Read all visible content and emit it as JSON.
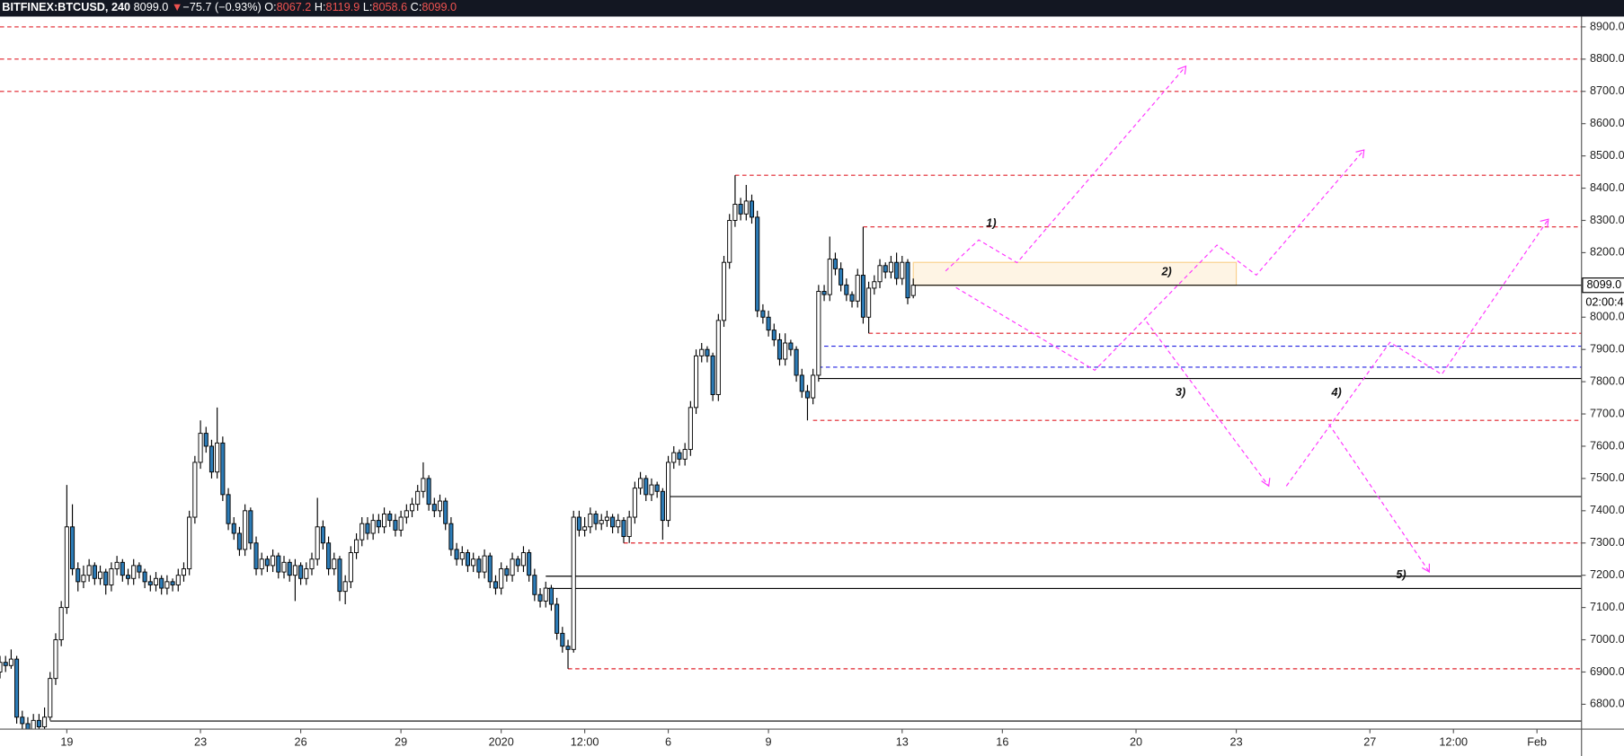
{
  "chart_data": {
    "type": "candlestick",
    "header": {
      "symbol": "BITFINEX:BTCUSD, 240",
      "last": "8099.0",
      "arrow": "▼",
      "change": "−75.7 (−0.93%)",
      "o_label": "O:",
      "o": "8067.2",
      "h_label": "H:",
      "h": "8119.9",
      "l_label": "L:",
      "l": "8058.6",
      "c_label": "C:",
      "c": "8099.0"
    },
    "price_label": "8099.0",
    "countdown": "02:00:4",
    "up_color": "#ffffff",
    "down_color": "#2c7bb6",
    "outline_color": "#000000",
    "xlim": [
      0,
      284
    ],
    "ylim": [
      6723,
      8932
    ],
    "xticks": [
      {
        "value": 12,
        "label": "19"
      },
      {
        "value": 36,
        "label": "23"
      },
      {
        "value": 54,
        "label": "26"
      },
      {
        "value": 72,
        "label": "29"
      },
      {
        "value": 90,
        "label": "2020"
      },
      {
        "value": 105,
        "label": "12:00"
      },
      {
        "value": 120,
        "label": "6"
      },
      {
        "value": 138,
        "label": "9"
      },
      {
        "value": 162,
        "label": "13"
      },
      {
        "value": 180,
        "label": "16"
      },
      {
        "value": 204,
        "label": "20"
      },
      {
        "value": 222,
        "label": "23"
      },
      {
        "value": 246,
        "label": "27"
      },
      {
        "value": 261,
        "label": "12:00"
      },
      {
        "value": 276,
        "label": "Feb"
      }
    ],
    "yticks": [
      {
        "value": 8900,
        "label": "8900.0"
      },
      {
        "value": 8800,
        "label": "8800.0"
      },
      {
        "value": 8700,
        "label": "8700.0"
      },
      {
        "value": 8600,
        "label": "8600.0"
      },
      {
        "value": 8500,
        "label": "8500.0"
      },
      {
        "value": 8400,
        "label": "8400.0"
      },
      {
        "value": 8300,
        "label": "8300.0"
      },
      {
        "value": 8200,
        "label": "8200.0"
      },
      {
        "value": 8000,
        "label": "8000.0"
      },
      {
        "value": 7900,
        "label": "7900.0"
      },
      {
        "value": 7800,
        "label": "7800.0"
      },
      {
        "value": 7700,
        "label": "7700.0"
      },
      {
        "value": 7600,
        "label": "7600.0"
      },
      {
        "value": 7500,
        "label": "7500.0"
      },
      {
        "value": 7400,
        "label": "7400.0"
      },
      {
        "value": 7300,
        "label": "7300.0"
      },
      {
        "value": 7200,
        "label": "7200.0"
      },
      {
        "value": 7100,
        "label": "7100.0"
      },
      {
        "value": 7000,
        "label": "7000.0"
      },
      {
        "value": 6900,
        "label": "6900.0"
      },
      {
        "value": 6800,
        "label": "6800.0"
      }
    ],
    "levels": [
      {
        "price": 8900,
        "start": 0,
        "color": "#e0202a",
        "dashed": true
      },
      {
        "price": 8800,
        "start": 0,
        "color": "#e0202a",
        "dashed": true
      },
      {
        "price": 8700,
        "start": 0,
        "color": "#e0202a",
        "dashed": true
      },
      {
        "price": 8440,
        "start": 132,
        "color": "#e0202a",
        "dashed": true
      },
      {
        "price": 8280,
        "start": 155,
        "color": "#e0202a",
        "dashed": true
      },
      {
        "price": 7950,
        "start": 156,
        "color": "#e0202a",
        "dashed": true
      },
      {
        "price": 7680,
        "start": 146,
        "color": "#e0202a",
        "dashed": true
      },
      {
        "price": 7300,
        "start": 112,
        "color": "#e0202a",
        "dashed": true
      },
      {
        "price": 6910,
        "start": 102,
        "color": "#e0202a",
        "dashed": true
      },
      {
        "price": 7910,
        "start": 148,
        "color": "#2020e0",
        "dashed": true
      },
      {
        "price": 7845,
        "start": 147,
        "color": "#2020e0",
        "dashed": true
      },
      {
        "price": 8099,
        "start": 164,
        "color": "#000000",
        "dashed": false
      },
      {
        "price": 7810,
        "start": 147,
        "color": "#000000",
        "dashed": false
      },
      {
        "price": 7444,
        "start": 120,
        "color": "#000000",
        "dashed": false
      },
      {
        "price": 7197,
        "start": 98,
        "color": "#000000",
        "dashed": false
      },
      {
        "price": 7159,
        "start": 98,
        "color": "#000000",
        "dashed": false
      },
      {
        "price": 6748,
        "start": 9,
        "color": "#000000",
        "dashed": false
      }
    ],
    "zone": {
      "start": 164,
      "end": 222,
      "top": 8170,
      "bottom": 8099,
      "color": "#f5a623"
    },
    "annotations": [
      {
        "text": "1)",
        "x": 178,
        "price": 8290
      },
      {
        "text": "2)",
        "x": 209.5,
        "price": 8140
      },
      {
        "text": "3)",
        "x": 212,
        "price": 7765
      },
      {
        "text": "4)",
        "x": 240,
        "price": 7765
      },
      {
        "text": "5)",
        "x": 251.6,
        "price": 7200
      }
    ],
    "ohlc": [
      [
        6900,
        6950,
        6880,
        6930
      ],
      [
        6930,
        6950,
        6900,
        6920
      ],
      [
        6920,
        6970,
        6910,
        6940
      ],
      [
        6940,
        6950,
        6740,
        6760
      ],
      [
        6760,
        6780,
        6720,
        6740
      ],
      [
        6740,
        6760,
        6700,
        6720
      ],
      [
        6720,
        6770,
        6700,
        6750
      ],
      [
        6750,
        6770,
        6710,
        6730
      ],
      [
        6730,
        6790,
        6720,
        6760
      ],
      [
        6760,
        6900,
        6750,
        6880
      ],
      [
        6880,
        7020,
        6860,
        7000
      ],
      [
        7000,
        7120,
        6980,
        7100
      ],
      [
        7100,
        7480,
        7080,
        7350
      ],
      [
        7350,
        7420,
        7200,
        7220
      ],
      [
        7220,
        7240,
        7150,
        7180
      ],
      [
        7180,
        7230,
        7160,
        7200
      ],
      [
        7200,
        7250,
        7180,
        7230
      ],
      [
        7230,
        7240,
        7170,
        7190
      ],
      [
        7190,
        7230,
        7170,
        7210
      ],
      [
        7210,
        7220,
        7140,
        7170
      ],
      [
        7170,
        7240,
        7150,
        7220
      ],
      [
        7220,
        7260,
        7200,
        7240
      ],
      [
        7240,
        7250,
        7180,
        7200
      ],
      [
        7200,
        7220,
        7170,
        7190
      ],
      [
        7190,
        7250,
        7170,
        7230
      ],
      [
        7230,
        7240,
        7190,
        7210
      ],
      [
        7210,
        7220,
        7160,
        7180
      ],
      [
        7180,
        7200,
        7150,
        7170
      ],
      [
        7170,
        7210,
        7150,
        7190
      ],
      [
        7190,
        7200,
        7140,
        7160
      ],
      [
        7160,
        7200,
        7140,
        7180
      ],
      [
        7180,
        7190,
        7150,
        7170
      ],
      [
        7170,
        7220,
        7150,
        7200
      ],
      [
        7200,
        7240,
        7180,
        7220
      ],
      [
        7220,
        7400,
        7200,
        7380
      ],
      [
        7380,
        7570,
        7360,
        7550
      ],
      [
        7550,
        7680,
        7530,
        7640
      ],
      [
        7640,
        7660,
        7580,
        7600
      ],
      [
        7600,
        7620,
        7500,
        7520
      ],
      [
        7520,
        7720,
        7500,
        7610
      ],
      [
        7610,
        7630,
        7430,
        7450
      ],
      [
        7450,
        7470,
        7340,
        7360
      ],
      [
        7360,
        7380,
        7310,
        7330
      ],
      [
        7330,
        7350,
        7260,
        7280
      ],
      [
        7280,
        7420,
        7260,
        7400
      ],
      [
        7400,
        7410,
        7280,
        7300
      ],
      [
        7300,
        7320,
        7200,
        7220
      ],
      [
        7220,
        7270,
        7200,
        7250
      ],
      [
        7250,
        7260,
        7210,
        7230
      ],
      [
        7230,
        7280,
        7210,
        7260
      ],
      [
        7260,
        7270,
        7190,
        7210
      ],
      [
        7210,
        7260,
        7190,
        7240
      ],
      [
        7240,
        7250,
        7180,
        7200
      ],
      [
        7200,
        7250,
        7120,
        7230
      ],
      [
        7230,
        7240,
        7170,
        7190
      ],
      [
        7190,
        7240,
        7170,
        7220
      ],
      [
        7220,
        7270,
        7200,
        7250
      ],
      [
        7250,
        7440,
        7230,
        7350
      ],
      [
        7350,
        7370,
        7280,
        7300
      ],
      [
        7300,
        7320,
        7200,
        7220
      ],
      [
        7220,
        7270,
        7200,
        7250
      ],
      [
        7250,
        7260,
        7120,
        7150
      ],
      [
        7150,
        7200,
        7110,
        7180
      ],
      [
        7180,
        7290,
        7160,
        7270
      ],
      [
        7270,
        7330,
        7250,
        7310
      ],
      [
        7310,
        7380,
        7290,
        7360
      ],
      [
        7360,
        7380,
        7310,
        7330
      ],
      [
        7330,
        7390,
        7310,
        7370
      ],
      [
        7370,
        7390,
        7330,
        7350
      ],
      [
        7350,
        7410,
        7330,
        7390
      ],
      [
        7390,
        7400,
        7350,
        7370
      ],
      [
        7370,
        7390,
        7320,
        7340
      ],
      [
        7340,
        7400,
        7320,
        7380
      ],
      [
        7380,
        7420,
        7360,
        7400
      ],
      [
        7400,
        7440,
        7380,
        7420
      ],
      [
        7420,
        7480,
        7400,
        7460
      ],
      [
        7460,
        7550,
        7440,
        7500
      ],
      [
        7500,
        7510,
        7400,
        7420
      ],
      [
        7420,
        7440,
        7380,
        7400
      ],
      [
        7400,
        7450,
        7380,
        7430
      ],
      [
        7430,
        7440,
        7340,
        7360
      ],
      [
        7360,
        7380,
        7260,
        7280
      ],
      [
        7280,
        7300,
        7230,
        7250
      ],
      [
        7250,
        7290,
        7230,
        7270
      ],
      [
        7270,
        7280,
        7210,
        7230
      ],
      [
        7230,
        7270,
        7210,
        7250
      ],
      [
        7250,
        7260,
        7190,
        7210
      ],
      [
        7210,
        7280,
        7190,
        7260
      ],
      [
        7260,
        7270,
        7160,
        7180
      ],
      [
        7180,
        7200,
        7140,
        7160
      ],
      [
        7160,
        7240,
        7140,
        7220
      ],
      [
        7220,
        7230,
        7180,
        7200
      ],
      [
        7200,
        7270,
        7180,
        7250
      ],
      [
        7250,
        7260,
        7210,
        7230
      ],
      [
        7230,
        7290,
        7210,
        7270
      ],
      [
        7270,
        7280,
        7180,
        7200
      ],
      [
        7200,
        7220,
        7120,
        7140
      ],
      [
        7140,
        7160,
        7100,
        7120
      ],
      [
        7120,
        7180,
        7100,
        7160
      ],
      [
        7160,
        7170,
        7090,
        7110
      ],
      [
        7110,
        7130,
        7000,
        7020
      ],
      [
        7020,
        7040,
        6960,
        6980
      ],
      [
        6980,
        7000,
        6910,
        6970
      ],
      [
        6970,
        7400,
        6960,
        7380
      ],
      [
        7380,
        7400,
        7320,
        7340
      ],
      [
        7340,
        7380,
        7320,
        7350
      ],
      [
        7350,
        7410,
        7330,
        7390
      ],
      [
        7390,
        7400,
        7340,
        7360
      ],
      [
        7360,
        7390,
        7340,
        7370
      ],
      [
        7370,
        7400,
        7350,
        7380
      ],
      [
        7380,
        7390,
        7330,
        7350
      ],
      [
        7350,
        7390,
        7330,
        7370
      ],
      [
        7370,
        7380,
        7300,
        7320
      ],
      [
        7320,
        7400,
        7300,
        7380
      ],
      [
        7380,
        7490,
        7360,
        7470
      ],
      [
        7470,
        7520,
        7450,
        7500
      ],
      [
        7500,
        7510,
        7430,
        7450
      ],
      [
        7450,
        7500,
        7430,
        7480
      ],
      [
        7480,
        7490,
        7440,
        7460
      ],
      [
        7460,
        7470,
        7310,
        7370
      ],
      [
        7370,
        7570,
        7350,
        7550
      ],
      [
        7550,
        7600,
        7530,
        7580
      ],
      [
        7580,
        7590,
        7540,
        7560
      ],
      [
        7560,
        7610,
        7540,
        7590
      ],
      [
        7590,
        7740,
        7570,
        7720
      ],
      [
        7720,
        7900,
        7700,
        7880
      ],
      [
        7880,
        7920,
        7860,
        7900
      ],
      [
        7900,
        7910,
        7860,
        7880
      ],
      [
        7880,
        7890,
        7740,
        7760
      ],
      [
        7760,
        8010,
        7740,
        7990
      ],
      [
        7990,
        8190,
        7970,
        8170
      ],
      [
        8170,
        8320,
        8150,
        8300
      ],
      [
        8300,
        8440,
        8280,
        8350
      ],
      [
        8350,
        8370,
        8300,
        8320
      ],
      [
        8320,
        8410,
        8300,
        8360
      ],
      [
        8360,
        8380,
        8290,
        8310
      ],
      [
        8310,
        8330,
        8000,
        8020
      ],
      [
        8020,
        8040,
        7980,
        8000
      ],
      [
        8000,
        8020,
        7940,
        7960
      ],
      [
        7960,
        7980,
        7910,
        7930
      ],
      [
        7930,
        7950,
        7850,
        7870
      ],
      [
        7870,
        7950,
        7850,
        7920
      ],
      [
        7920,
        7930,
        7880,
        7900
      ],
      [
        7900,
        7910,
        7800,
        7820
      ],
      [
        7820,
        7840,
        7750,
        7770
      ],
      [
        7770,
        7790,
        7680,
        7750
      ],
      [
        7750,
        7840,
        7730,
        7820
      ],
      [
        7820,
        8100,
        7800,
        8080
      ],
      [
        8080,
        8100,
        8050,
        8070
      ],
      [
        8070,
        8250,
        8050,
        8180
      ],
      [
        8180,
        8200,
        8130,
        8150
      ],
      [
        8150,
        8170,
        8080,
        8100
      ],
      [
        8100,
        8120,
        8050,
        8070
      ],
      [
        8070,
        8080,
        8030,
        8050
      ],
      [
        8050,
        8150,
        8030,
        8130
      ],
      [
        8130,
        8280,
        7980,
        8000
      ],
      [
        8000,
        8110,
        7950,
        8090
      ],
      [
        8090,
        8130,
        8070,
        8110
      ],
      [
        8110,
        8180,
        8090,
        8160
      ],
      [
        8160,
        8170,
        8120,
        8140
      ],
      [
        8140,
        8190,
        8120,
        8170
      ],
      [
        8170,
        8200,
        8100,
        8120
      ],
      [
        8120,
        8190,
        8100,
        8170
      ],
      [
        8170,
        8180,
        8040,
        8060
      ],
      [
        8067.2,
        8119.9,
        8058.6,
        8099.0
      ]
    ]
  }
}
